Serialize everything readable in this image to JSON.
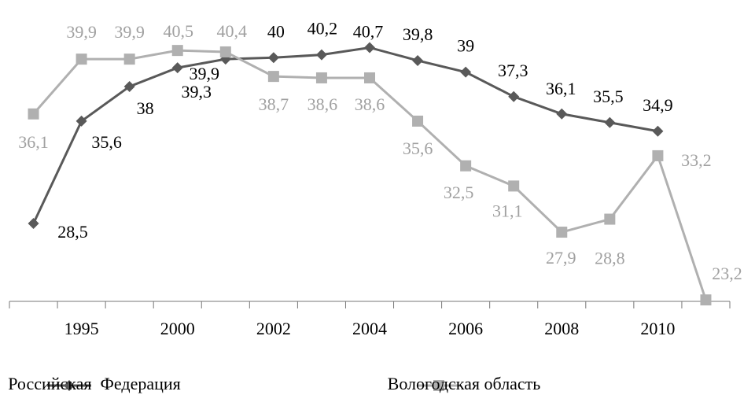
{
  "chart_data": {
    "type": "line",
    "categories": [
      null,
      "1995",
      null,
      "2000",
      null,
      "2002",
      null,
      "2004",
      null,
      "2006",
      null,
      "2008",
      null,
      "2010",
      null
    ],
    "series": [
      {
        "name": "Российская  Федерация",
        "color": "#595959",
        "marker": "diamond",
        "values": [
          28.5,
          35.6,
          38,
          39.3,
          39.9,
          40,
          40.2,
          40.7,
          39.8,
          39,
          37.3,
          36.1,
          35.5,
          34.9,
          null
        ],
        "value_labels": [
          "28,5",
          "35,6",
          "38",
          "39,3",
          "39,9",
          "40",
          "40,2",
          "40,7",
          "39,8",
          "39",
          "37,3",
          "36,1",
          "35,5",
          "34,9",
          null
        ]
      },
      {
        "name": "Вологодская область",
        "color": "#b0b0b0",
        "marker": "square",
        "values": [
          36.1,
          39.9,
          39.9,
          40.5,
          40.4,
          38.7,
          38.6,
          38.6,
          35.6,
          32.5,
          31.1,
          27.9,
          28.8,
          33.2,
          23.2
        ],
        "value_labels": [
          "36,1",
          "39,9",
          "39,9",
          "40,5",
          "40,4",
          "38,7",
          "38,6",
          "38,6",
          "35,6",
          "32,5",
          "31,1",
          "27,9",
          "28,8",
          "33,2",
          "23,2"
        ]
      }
    ],
    "ylim": [
      23.1,
      44
    ]
  }
}
